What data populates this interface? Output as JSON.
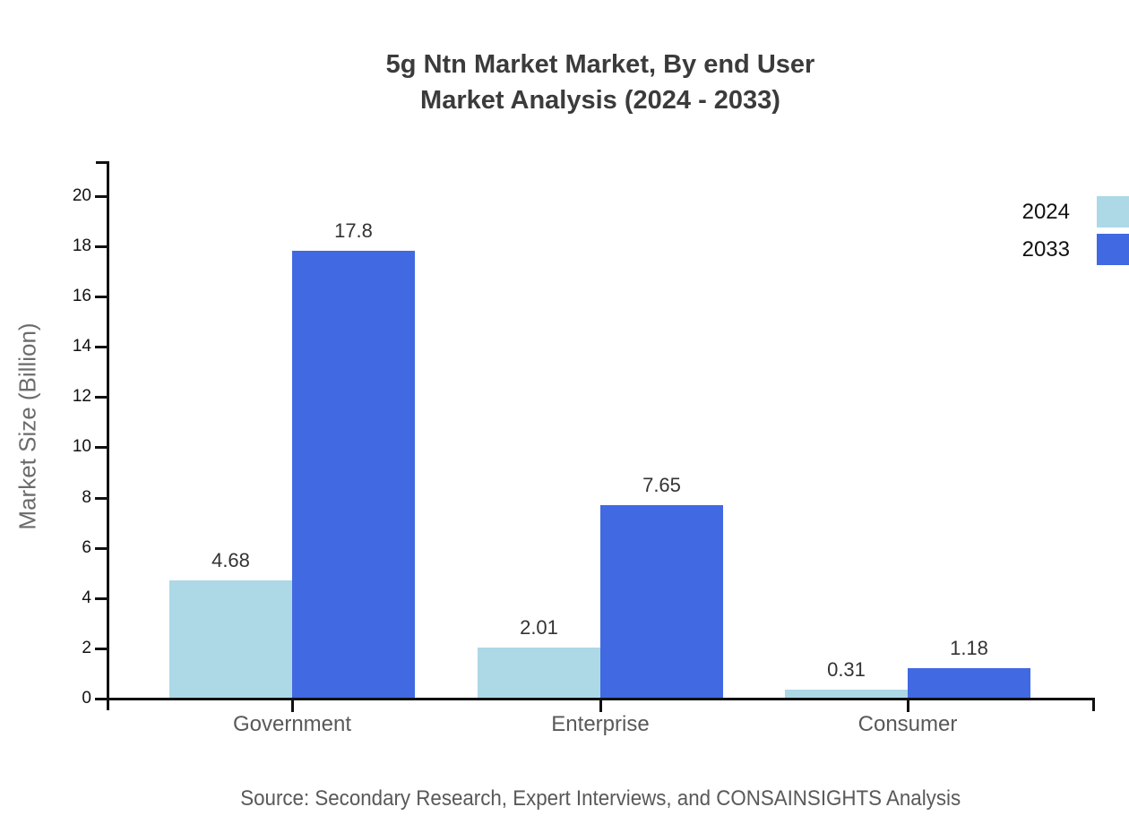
{
  "title": {
    "line1": "5g Ntn Market Market, By end User",
    "line2": "Market Analysis (2024 - 2033)"
  },
  "source": "Source: Secondary Research, Expert Interviews, and CONSAINSIGHTS Analysis",
  "colors": {
    "series_2024": "#add8e6",
    "series_2033": "#4169e1",
    "title_text": "#3b3b3b",
    "axis_line": "#111111",
    "tick_label_text": "#111111",
    "category_text": "#595959",
    "value_label_text": "#333333",
    "y_axis_title_text": "#6b6b6b",
    "source_text": "#595959"
  },
  "chart_data": {
    "type": "bar",
    "title": "5g Ntn Market Market, By end User Market Analysis (2024 - 2033)",
    "categories": [
      "Government",
      "Enterprise",
      "Consumer"
    ],
    "series": [
      {
        "name": "2024",
        "color": "#add8e6",
        "values": [
          4.68,
          2.01,
          0.31
        ]
      },
      {
        "name": "2033",
        "color": "#4169e1",
        "values": [
          17.8,
          7.65,
          1.18
        ]
      }
    ],
    "xlabel": "",
    "ylabel": "Market Size (Billion)",
    "ylim": [
      0,
      21.4
    ],
    "yticks": [
      0,
      2,
      4,
      6,
      8,
      10,
      12,
      14,
      16,
      18,
      20
    ],
    "grid": false,
    "legend_position": "top-right",
    "bar_value_labels": true,
    "source_note": "Source: Secondary Research, Expert Interviews, and CONSAINSIGHTS Analysis"
  }
}
